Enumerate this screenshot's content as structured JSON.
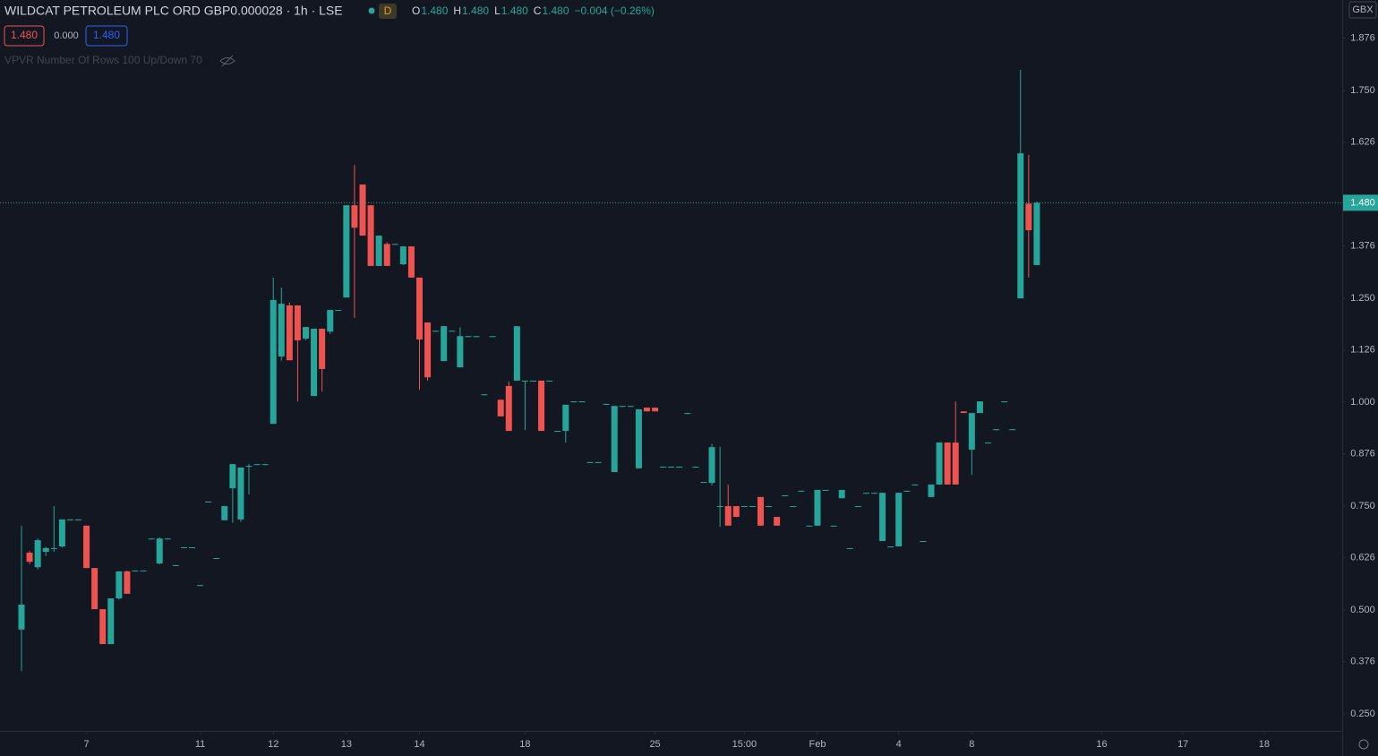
{
  "chart_data": {
    "type": "candlestick",
    "title": "WILDCAT PETROLEUM PLC ORD GBP0.000028 · 1h · LSE",
    "badge": "D",
    "readout": [
      {
        "key": "O",
        "text": "1.480"
      },
      {
        "key": "H",
        "text": "1.480"
      },
      {
        "key": "L",
        "text": "1.480"
      },
      {
        "key": "C",
        "text": "1.480"
      }
    ],
    "change": "−0.004 (−0.26%)",
    "quote_boxes": [
      "1.480",
      "0.000",
      "1.480"
    ],
    "indicator": "VPVR Number Of Rows 100 Up/Down 70",
    "currency": "GBX",
    "up_color": "#26a69a",
    "down_color": "#ef5350",
    "last_price": {
      "value": 1.48,
      "label": "1.480"
    },
    "ylim": [
      0.209,
      1.968
    ],
    "yticks": [
      {
        "value": 1.876,
        "label": "1.876"
      },
      {
        "value": 1.75,
        "label": "1.750"
      },
      {
        "value": 1.626,
        "label": "1.626"
      },
      {
        "value": 1.376,
        "label": "1.376"
      },
      {
        "value": 1.25,
        "label": "1.250"
      },
      {
        "value": 1.126,
        "label": "1.126"
      },
      {
        "value": 1.0,
        "label": "1.000"
      },
      {
        "value": 0.876,
        "label": "0.876"
      },
      {
        "value": 0.75,
        "label": "0.750"
      },
      {
        "value": 0.626,
        "label": "0.626"
      },
      {
        "value": 0.5,
        "label": "0.500"
      },
      {
        "value": 0.376,
        "label": "0.376"
      },
      {
        "value": 0.25,
        "label": "0.250"
      }
    ],
    "xlim": [
      -2.646,
      162.6
    ],
    "xticks": [
      {
        "value": 8,
        "label": "7"
      },
      {
        "value": 22,
        "label": "11"
      },
      {
        "value": 31,
        "label": "12"
      },
      {
        "value": 40,
        "label": "13"
      },
      {
        "value": 49,
        "label": "14"
      },
      {
        "value": 62,
        "label": "18"
      },
      {
        "value": 78,
        "label": "25"
      },
      {
        "value": 89,
        "label": "15:00"
      },
      {
        "value": 98,
        "label": "Feb"
      },
      {
        "value": 108,
        "label": "4"
      },
      {
        "value": 117,
        "label": "8"
      },
      {
        "value": 133,
        "label": "16"
      },
      {
        "value": 143,
        "label": "17"
      },
      {
        "value": 153,
        "label": "18"
      }
    ],
    "ohlc": [
      [
        0.453,
        0.703,
        0.353,
        0.513
      ],
      [
        0.638,
        0.642,
        0.61,
        0.616
      ],
      [
        0.603,
        0.672,
        0.598,
        0.668
      ],
      [
        0.64,
        0.652,
        0.63,
        0.649
      ],
      [
        0.649,
        0.75,
        0.64,
        0.649
      ],
      [
        0.653,
        0.718,
        0.65,
        0.718
      ],
      [
        0.718,
        0.718,
        0.718,
        0.718
      ],
      [
        0.718,
        0.718,
        0.718,
        0.718
      ],
      [
        0.703,
        0.703,
        0.601,
        0.601
      ],
      [
        0.601,
        0.601,
        0.502,
        0.502
      ],
      [
        0.502,
        0.502,
        0.418,
        0.418
      ],
      [
        0.418,
        0.528,
        0.418,
        0.528
      ],
      [
        0.528,
        0.593,
        0.525,
        0.593
      ],
      [
        0.593,
        0.595,
        0.539,
        0.539
      ],
      [
        0.595,
        0.595,
        0.595,
        0.595
      ],
      [
        0.595,
        0.595,
        0.595,
        0.595
      ],
      [
        0.672,
        0.672,
        0.672,
        0.672
      ],
      [
        0.612,
        0.675,
        0.61,
        0.672
      ],
      [
        0.672,
        0.672,
        0.672,
        0.672
      ],
      [
        0.608,
        0.608,
        0.608,
        0.608
      ],
      [
        0.651,
        0.651,
        0.651,
        0.651
      ],
      [
        0.651,
        0.651,
        0.651,
        0.651
      ],
      [
        0.56,
        0.56,
        0.56,
        0.56
      ],
      [
        0.761,
        0.761,
        0.761,
        0.761
      ],
      [
        0.625,
        0.625,
        0.625,
        0.625
      ],
      [
        0.716,
        0.75,
        0.716,
        0.75
      ],
      [
        0.793,
        0.851,
        0.71,
        0.851
      ],
      [
        0.718,
        0.843,
        0.712,
        0.843
      ],
      [
        0.847,
        0.851,
        0.778,
        0.847
      ],
      [
        0.851,
        0.851,
        0.851,
        0.851
      ],
      [
        0.851,
        0.851,
        0.851,
        0.851
      ],
      [
        0.948,
        1.3,
        0.948,
        1.246
      ],
      [
        1.11,
        1.276,
        1.1,
        1.237
      ],
      [
        1.233,
        1.24,
        1.101,
        1.101
      ],
      [
        1.233,
        1.233,
        1.002,
        1.149
      ],
      [
        1.153,
        1.181,
        1.15,
        1.181
      ],
      [
        1.015,
        1.177,
        1.015,
        1.177
      ],
      [
        1.177,
        1.177,
        1.026,
        1.08
      ],
      [
        1.17,
        1.222,
        1.165,
        1.222
      ],
      [
        1.222,
        1.222,
        1.222,
        1.222
      ],
      [
        1.252,
        1.474,
        1.252,
        1.474
      ],
      [
        1.474,
        1.571,
        1.203,
        1.42
      ],
      [
        1.524,
        1.524,
        1.401,
        1.401
      ],
      [
        1.474,
        1.474,
        1.328,
        1.328
      ],
      [
        1.328,
        1.401,
        1.328,
        1.401
      ],
      [
        1.381,
        1.385,
        1.328,
        1.328
      ],
      [
        1.381,
        1.381,
        1.381,
        1.381
      ],
      [
        1.332,
        1.375,
        1.33,
        1.375
      ],
      [
        1.375,
        1.375,
        1.3,
        1.3
      ],
      [
        1.3,
        1.3,
        1.03,
        1.151
      ],
      [
        1.192,
        1.192,
        1.052,
        1.06
      ],
      [
        1.172,
        1.172,
        1.172,
        1.172
      ],
      [
        1.099,
        1.183,
        1.099,
        1.183
      ],
      [
        1.172,
        1.172,
        1.172,
        1.172
      ],
      [
        1.084,
        1.18,
        1.084,
        1.159
      ],
      [
        1.159,
        1.159,
        1.159,
        1.159
      ],
      [
        1.159,
        1.159,
        1.159,
        1.159
      ],
      [
        1.019,
        1.019,
        1.019,
        1.019
      ],
      [
        1.159,
        1.159,
        1.159,
        1.159
      ],
      [
        1.006,
        1.006,
        0.966,
        0.966
      ],
      [
        1.039,
        1.05,
        0.931,
        0.931
      ],
      [
        1.052,
        1.183,
        1.052,
        1.183
      ],
      [
        1.052,
        1.052,
        0.933,
        1.052
      ],
      [
        1.052,
        1.052,
        1.052,
        1.052
      ],
      [
        1.052,
        1.052,
        0.931,
        0.931
      ],
      [
        1.052,
        1.052,
        1.052,
        1.052
      ],
      [
        0.931,
        0.931,
        0.931,
        0.931
      ],
      [
        0.931,
        0.994,
        0.903,
        0.994
      ],
      [
        1.002,
        1.002,
        1.002,
        1.002
      ],
      [
        1.002,
        1.002,
        1.002,
        1.002
      ],
      [
        0.856,
        0.856,
        0.856,
        0.856
      ],
      [
        0.856,
        0.856,
        0.856,
        0.856
      ],
      [
        0.996,
        0.996,
        0.996,
        0.996
      ],
      [
        0.832,
        0.991,
        0.832,
        0.991
      ],
      [
        0.991,
        0.991,
        0.991,
        0.991
      ],
      [
        0.991,
        0.991,
        0.991,
        0.991
      ],
      [
        0.841,
        0.983,
        0.841,
        0.983
      ],
      [
        0.987,
        0.987,
        0.978,
        0.978
      ],
      [
        0.987,
        0.987,
        0.978,
        0.978
      ],
      [
        0.845,
        0.845,
        0.845,
        0.845
      ],
      [
        0.845,
        0.845,
        0.845,
        0.845
      ],
      [
        0.845,
        0.845,
        0.845,
        0.845
      ],
      [
        0.974,
        0.974,
        0.974,
        0.974
      ],
      [
        0.845,
        0.845,
        0.845,
        0.845
      ],
      [
        0.808,
        0.808,
        0.808,
        0.808
      ],
      [
        0.806,
        0.9,
        0.8,
        0.892
      ],
      [
        0.75,
        0.893,
        0.7,
        0.75
      ],
      [
        0.75,
        0.802,
        0.703,
        0.703
      ],
      [
        0.75,
        0.75,
        0.724,
        0.724
      ],
      [
        0.75,
        0.75,
        0.75,
        0.75
      ],
      [
        0.75,
        0.75,
        0.75,
        0.75
      ],
      [
        0.772,
        0.772,
        0.703,
        0.703
      ],
      [
        0.75,
        0.75,
        0.75,
        0.75
      ],
      [
        0.724,
        0.724,
        0.703,
        0.703
      ],
      [
        0.776,
        0.776,
        0.776,
        0.776
      ],
      [
        0.75,
        0.75,
        0.75,
        0.75
      ],
      [
        0.787,
        0.787,
        0.787,
        0.787
      ],
      [
        0.703,
        0.703,
        0.703,
        0.703
      ],
      [
        0.703,
        0.789,
        0.703,
        0.789
      ],
      [
        0.789,
        0.789,
        0.789,
        0.789
      ],
      [
        0.703,
        0.703,
        0.703,
        0.703
      ],
      [
        0.769,
        0.789,
        0.769,
        0.789
      ],
      [
        0.649,
        0.649,
        0.649,
        0.649
      ],
      [
        0.75,
        0.75,
        0.75,
        0.75
      ],
      [
        0.782,
        0.782,
        0.782,
        0.782
      ],
      [
        0.782,
        0.782,
        0.782,
        0.782
      ],
      [
        0.666,
        0.782,
        0.666,
        0.782
      ],
      [
        0.653,
        0.653,
        0.653,
        0.653
      ],
      [
        0.653,
        0.782,
        0.653,
        0.782
      ],
      [
        0.787,
        0.787,
        0.787,
        0.787
      ],
      [
        0.802,
        0.802,
        0.802,
        0.802
      ],
      [
        0.666,
        0.666,
        0.666,
        0.666
      ],
      [
        0.772,
        0.802,
        0.772,
        0.802
      ],
      [
        0.802,
        0.903,
        0.802,
        0.903
      ],
      [
        0.903,
        0.903,
        0.802,
        0.802
      ],
      [
        0.903,
        1.002,
        0.802,
        0.802
      ],
      [
        0.978,
        0.978,
        0.974,
        0.974
      ],
      [
        0.886,
        0.974,
        0.825,
        0.974
      ],
      [
        0.974,
        1.002,
        0.974,
        1.002
      ],
      [
        0.903,
        0.903,
        0.903,
        0.903
      ],
      [
        0.935,
        0.935,
        0.935,
        0.935
      ],
      [
        1.002,
        1.002,
        1.002,
        1.002
      ],
      [
        0.935,
        0.935,
        0.935,
        0.935
      ],
      [
        1.25,
        1.8,
        1.25,
        1.599
      ],
      [
        1.478,
        1.595,
        1.3,
        1.414
      ],
      [
        1.33,
        1.483,
        1.33,
        1.48
      ]
    ]
  }
}
